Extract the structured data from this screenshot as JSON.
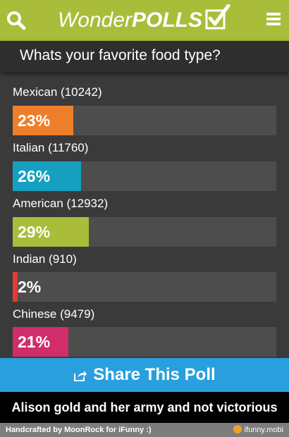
{
  "header": {
    "logo_wonder": "Wonder",
    "logo_polls": "POLLS",
    "search_icon": "search-icon",
    "menu_icon": "hamburger-menu-icon",
    "color": "#a9bd3a"
  },
  "question": "Whats your favorite food type?",
  "options": [
    {
      "label": "Mexican (10242)",
      "percent": "23%",
      "fraction": 0.23,
      "color": "#ee7f2a"
    },
    {
      "label": "Italian (11760)",
      "percent": "26%",
      "fraction": 0.26,
      "color": "#159fc0"
    },
    {
      "label": "American (12932)",
      "percent": "29%",
      "fraction": 0.29,
      "color": "#a9bd3a"
    },
    {
      "label": "Indian (910)",
      "percent": "2%",
      "fraction": 0.02,
      "color": "#e53935"
    },
    {
      "label": "Chinese (9479)",
      "percent": "21%",
      "fraction": 0.21,
      "color": "#d12d6a"
    }
  ],
  "share": {
    "label": "Share This Poll",
    "icon": "share-icon",
    "color": "#2a9fde"
  },
  "caption": "Alison gold and her army and not victorious",
  "footer": {
    "credit": "Handcrafted by MoonRock for iFunny :)",
    "site": "ifunny.mobi"
  }
}
